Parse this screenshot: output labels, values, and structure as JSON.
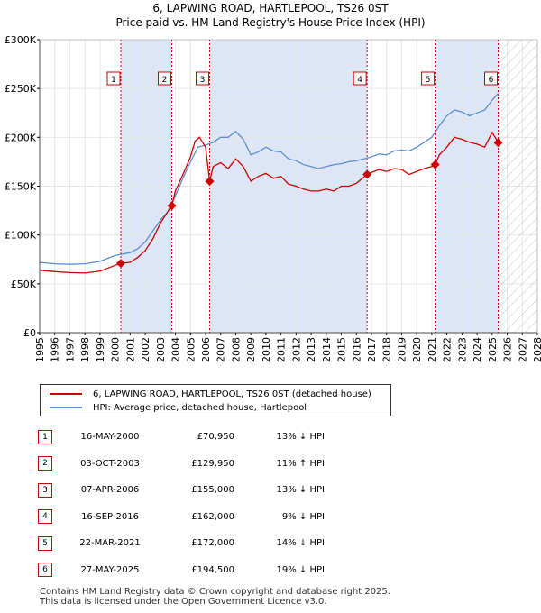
{
  "title": "6, LAPWING ROAD, HARTLEPOOL, TS26 0ST",
  "subtitle": "Price paid vs. HM Land Registry's House Price Index (HPI)",
  "colors": {
    "property": "#cc0000",
    "hpi": "#5b8fd0",
    "shade": "#dde6f7"
  },
  "chart_data": {
    "type": "line",
    "xlim": [
      1995,
      2028
    ],
    "ylim": [
      0,
      300000
    ],
    "x_ticks": [
      "1995",
      "1996",
      "1997",
      "1998",
      "1999",
      "2000",
      "2001",
      "2002",
      "2003",
      "2004",
      "2005",
      "2006",
      "2007",
      "2008",
      "2009",
      "2010",
      "2011",
      "2012",
      "2013",
      "2014",
      "2015",
      "2016",
      "2017",
      "2018",
      "2019",
      "2020",
      "2021",
      "2022",
      "2023",
      "2024",
      "2025",
      "2026",
      "2027",
      "2028"
    ],
    "y_ticks": [
      {
        "value": 0,
        "label": "£0"
      },
      {
        "value": 50000,
        "label": "£50K"
      },
      {
        "value": 100000,
        "label": "£100K"
      },
      {
        "value": 150000,
        "label": "£150K"
      },
      {
        "value": 200000,
        "label": "£200K"
      },
      {
        "value": 250000,
        "label": "£250K"
      },
      {
        "value": 300000,
        "label": "£300K"
      }
    ],
    "forecast_start": 2025.4,
    "series": [
      {
        "name": "6, LAPWING ROAD, HARTLEPOOL, TS26 0ST (detached house)",
        "color": "#cc0000",
        "points": [
          [
            1995.0,
            64000
          ],
          [
            1996.0,
            62500
          ],
          [
            1997.0,
            61500
          ],
          [
            1998.0,
            61000
          ],
          [
            1999.0,
            63000
          ],
          [
            2000.0,
            69000
          ],
          [
            2000.38,
            70950
          ],
          [
            2001.0,
            72000
          ],
          [
            2001.5,
            77000
          ],
          [
            2002.0,
            84000
          ],
          [
            2002.5,
            96000
          ],
          [
            2003.0,
            112000
          ],
          [
            2003.5,
            124000
          ],
          [
            2003.76,
            129950
          ],
          [
            2004.0,
            145000
          ],
          [
            2004.5,
            162000
          ],
          [
            2005.0,
            180000
          ],
          [
            2005.3,
            196000
          ],
          [
            2005.6,
            200000
          ],
          [
            2006.0,
            190000
          ],
          [
            2006.27,
            155000
          ],
          [
            2006.5,
            170000
          ],
          [
            2007.0,
            174000
          ],
          [
            2007.5,
            168000
          ],
          [
            2008.0,
            178000
          ],
          [
            2008.5,
            170000
          ],
          [
            2009.0,
            155000
          ],
          [
            2009.5,
            160000
          ],
          [
            2010.0,
            163000
          ],
          [
            2010.5,
            158000
          ],
          [
            2011.0,
            160000
          ],
          [
            2011.5,
            152000
          ],
          [
            2012.0,
            150000
          ],
          [
            2012.5,
            147000
          ],
          [
            2013.0,
            145000
          ],
          [
            2013.5,
            145000
          ],
          [
            2014.0,
            147000
          ],
          [
            2014.5,
            145000
          ],
          [
            2015.0,
            150000
          ],
          [
            2015.5,
            150000
          ],
          [
            2016.0,
            153000
          ],
          [
            2016.71,
            162000
          ],
          [
            2017.0,
            164000
          ],
          [
            2017.5,
            167000
          ],
          [
            2018.0,
            165000
          ],
          [
            2018.5,
            168000
          ],
          [
            2019.0,
            167000
          ],
          [
            2019.5,
            162000
          ],
          [
            2020.0,
            165000
          ],
          [
            2020.5,
            168000
          ],
          [
            2021.0,
            170000
          ],
          [
            2021.22,
            172000
          ],
          [
            2021.5,
            182000
          ],
          [
            2022.0,
            190000
          ],
          [
            2022.5,
            200000
          ],
          [
            2023.0,
            198000
          ],
          [
            2023.5,
            195000
          ],
          [
            2024.0,
            193000
          ],
          [
            2024.5,
            190000
          ],
          [
            2025.0,
            205000
          ],
          [
            2025.2,
            200000
          ],
          [
            2025.4,
            194500
          ]
        ]
      },
      {
        "name": "HPI: Average price, detached house, Hartlepool",
        "color": "#5b8fd0",
        "points": [
          [
            1995.0,
            72000
          ],
          [
            1996.0,
            70500
          ],
          [
            1997.0,
            70000
          ],
          [
            1998.0,
            70500
          ],
          [
            1999.0,
            73000
          ],
          [
            2000.0,
            79000
          ],
          [
            2001.0,
            82000
          ],
          [
            2001.5,
            86000
          ],
          [
            2002.0,
            93000
          ],
          [
            2002.5,
            104000
          ],
          [
            2003.0,
            115000
          ],
          [
            2003.5,
            124000
          ],
          [
            2004.0,
            140000
          ],
          [
            2004.5,
            158000
          ],
          [
            2005.0,
            175000
          ],
          [
            2005.5,
            190000
          ],
          [
            2006.0,
            192000
          ],
          [
            2006.5,
            195000
          ],
          [
            2007.0,
            200000
          ],
          [
            2007.5,
            200000
          ],
          [
            2008.0,
            206000
          ],
          [
            2008.5,
            198000
          ],
          [
            2009.0,
            182000
          ],
          [
            2009.5,
            185000
          ],
          [
            2010.0,
            190000
          ],
          [
            2010.5,
            186000
          ],
          [
            2011.0,
            185000
          ],
          [
            2011.5,
            178000
          ],
          [
            2012.0,
            176000
          ],
          [
            2012.5,
            172000
          ],
          [
            2013.0,
            170000
          ],
          [
            2013.5,
            168000
          ],
          [
            2014.0,
            170000
          ],
          [
            2014.5,
            172000
          ],
          [
            2015.0,
            173000
          ],
          [
            2015.5,
            175000
          ],
          [
            2016.0,
            176000
          ],
          [
            2016.5,
            178000
          ],
          [
            2017.0,
            180000
          ],
          [
            2017.5,
            183000
          ],
          [
            2018.0,
            182000
          ],
          [
            2018.5,
            186000
          ],
          [
            2019.0,
            187000
          ],
          [
            2019.5,
            186000
          ],
          [
            2020.0,
            190000
          ],
          [
            2020.5,
            195000
          ],
          [
            2021.0,
            200000
          ],
          [
            2021.5,
            212000
          ],
          [
            2022.0,
            222000
          ],
          [
            2022.5,
            228000
          ],
          [
            2023.0,
            226000
          ],
          [
            2023.5,
            222000
          ],
          [
            2024.0,
            225000
          ],
          [
            2024.5,
            228000
          ],
          [
            2025.0,
            238000
          ],
          [
            2025.4,
            245000
          ]
        ]
      }
    ],
    "sales": [
      {
        "n": "1",
        "year": 2000.38,
        "price": 70950
      },
      {
        "n": "2",
        "year": 2003.76,
        "price": 129950
      },
      {
        "n": "3",
        "year": 2006.27,
        "price": 155000
      },
      {
        "n": "4",
        "year": 2016.71,
        "price": 162000
      },
      {
        "n": "5",
        "year": 2021.22,
        "price": 172000
      },
      {
        "n": "6",
        "year": 2025.4,
        "price": 194500
      }
    ],
    "shaded_periods": [
      [
        2000.38,
        2003.76
      ],
      [
        2006.27,
        2016.71
      ],
      [
        2021.22,
        2025.4
      ]
    ]
  },
  "legend": {
    "property": "6, LAPWING ROAD, HARTLEPOOL, TS26 0ST (detached house)",
    "hpi": "HPI: Average price, detached house, Hartlepool"
  },
  "table": [
    {
      "n": "1",
      "date": "16-MAY-2000",
      "price": "£70,950",
      "hpi": "13% ↓ HPI"
    },
    {
      "n": "2",
      "date": "03-OCT-2003",
      "price": "£129,950",
      "hpi": "11% ↑ HPI"
    },
    {
      "n": "3",
      "date": "07-APR-2006",
      "price": "£155,000",
      "hpi": "13% ↓ HPI"
    },
    {
      "n": "4",
      "date": "16-SEP-2016",
      "price": "£162,000",
      "hpi": "9% ↓ HPI"
    },
    {
      "n": "5",
      "date": "22-MAR-2021",
      "price": "£172,000",
      "hpi": "14% ↓ HPI"
    },
    {
      "n": "6",
      "date": "27-MAY-2025",
      "price": "£194,500",
      "hpi": "19% ↓ HPI"
    }
  ],
  "footer": {
    "line1": "Contains HM Land Registry data © Crown copyright and database right 2025.",
    "line2": "This data is licensed under the Open Government Licence v3.0."
  }
}
